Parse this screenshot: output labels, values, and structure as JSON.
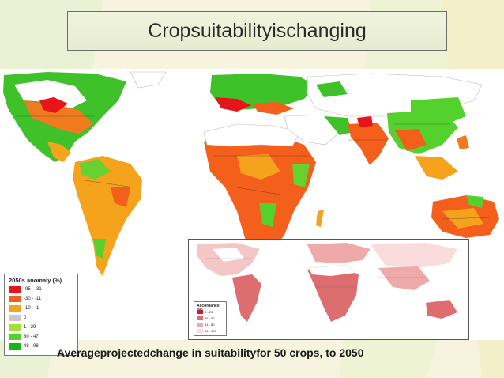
{
  "slide": {
    "title": "Cropsuitabilityischanging",
    "caption": "Averageprojectedchange in suitabilityfor 50 crops, to 2050"
  },
  "main_legend": {
    "title": "2050s anomaly (%)",
    "items": [
      {
        "label": "-95 - -31",
        "color": "#e8141b"
      },
      {
        "label": "-30 - -11",
        "color": "#f45f1c"
      },
      {
        "label": "-10 - -1",
        "color": "#f5a21d"
      },
      {
        "label": "0",
        "color": "#c8c8c8"
      },
      {
        "label": "1 - 29",
        "color": "#a5e03a"
      },
      {
        "label": "30 - 47",
        "color": "#55d12e"
      },
      {
        "label": "48 - 98",
        "color": "#19b31c"
      }
    ]
  },
  "inset_legend": {
    "title": "Accordance (%)",
    "items": [
      {
        "label": "0 - 25",
        "color": "#c5202a"
      },
      {
        "label": "26 - 50",
        "color": "#dd6d6f"
      },
      {
        "label": "51 - 80",
        "color": "#eeaaa9"
      },
      {
        "label": "81 - 100",
        "color": "#f9dcdb"
      }
    ]
  }
}
